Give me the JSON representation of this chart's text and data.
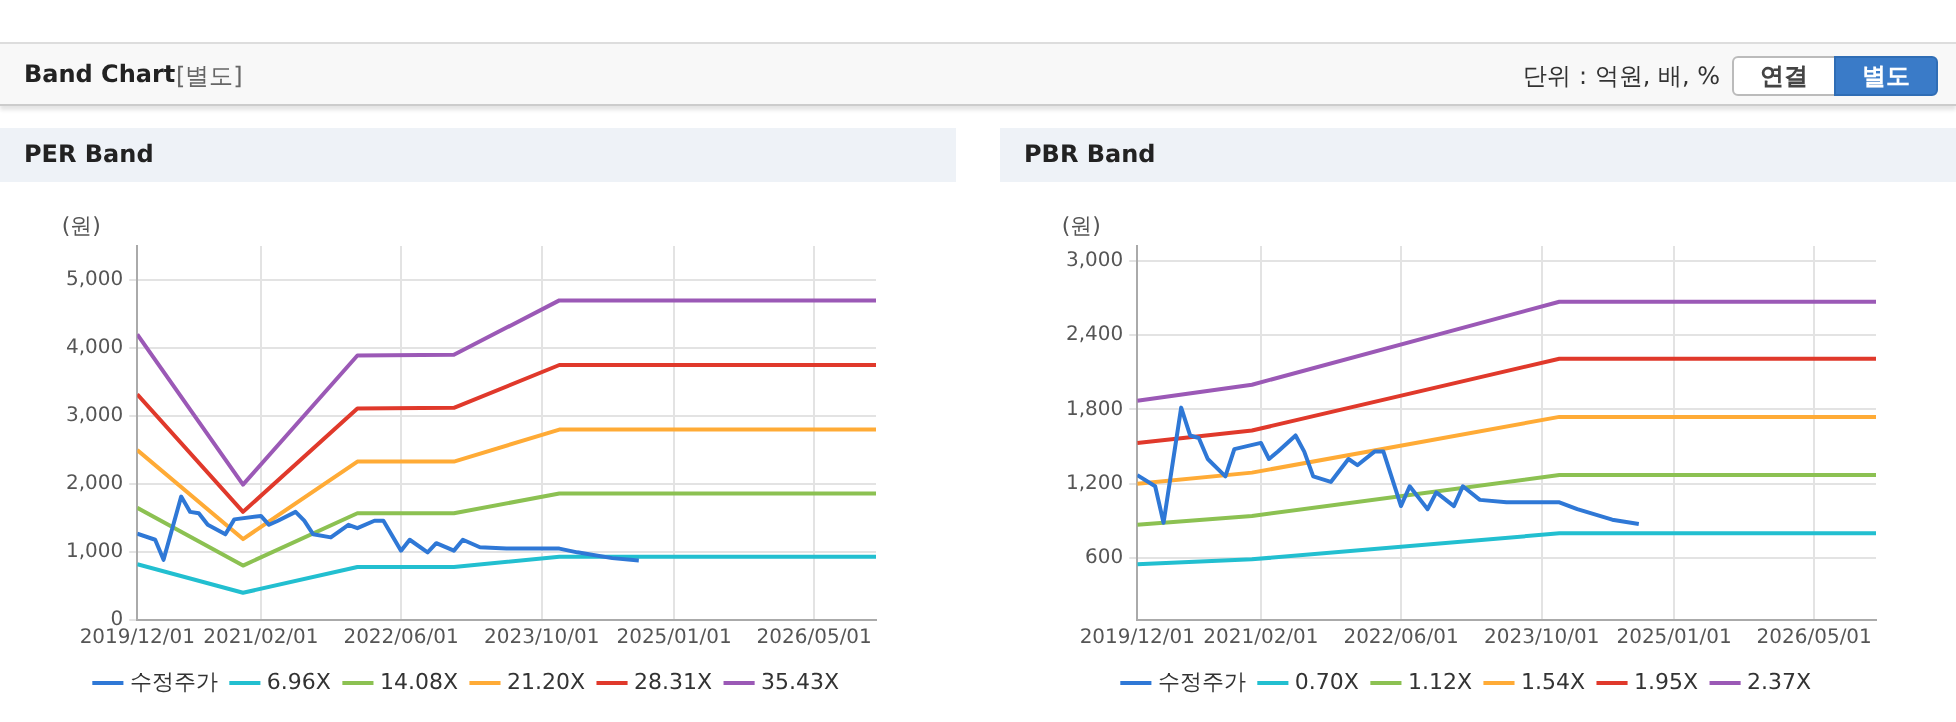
{
  "chart_data": [
    {
      "type": "other",
      "title": "Band Chart",
      "annotations": [
        "[별도]",
        "단위 : 억원, 배, %",
        "연결",
        "별도"
      ]
    },
    {
      "type": "line",
      "title": "PER Band",
      "ylabel": "(원)",
      "legend": "bottom",
      "grid": true,
      "xlim": [
        "2019-12-01",
        "2026-12-01"
      ],
      "xticks": [
        {
          "value": "2019-12-01",
          "label": "2019/12/01"
        },
        {
          "value": "2021-02-01",
          "label": "2021/02/01"
        },
        {
          "value": "2022-06-01",
          "label": "2022/06/01"
        },
        {
          "value": "2023-10-01",
          "label": "2023/10/01"
        },
        {
          "value": "2025-01-01",
          "label": "2025/01/01"
        },
        {
          "value": "2026-05-01",
          "label": "2026/05/01"
        }
      ],
      "ylim": [
        0,
        5500
      ],
      "yticks": [
        0,
        {
          "value": 1000,
          "label": "1,000"
        },
        {
          "value": 2000,
          "label": "2,000"
        },
        {
          "value": 3000,
          "label": "3,000"
        },
        {
          "value": 4000,
          "label": "4,000"
        },
        {
          "value": 5000,
          "label": "5,000"
        }
      ],
      "series": [
        {
          "name": "수정주가",
          "color": "#2f78d6",
          "x": [
            "2019-12",
            "2020-02",
            "2020-03",
            "2020-05",
            "2020-06",
            "2020-07",
            "2020-08",
            "2020-10",
            "2020-11",
            "2021-02",
            "2021-03",
            "2021-04",
            "2021-06",
            "2021-07",
            "2021-08",
            "2021-10",
            "2021-12",
            "2022-01",
            "2022-03",
            "2022-04",
            "2022-06",
            "2022-07",
            "2022-09",
            "2022-10",
            "2022-12",
            "2023-01",
            "2023-03",
            "2023-06",
            "2023-12",
            "2024-02",
            "2024-06",
            "2024-09"
          ],
          "values": [
            1270,
            1180,
            885,
            1815,
            1590,
            1570,
            1400,
            1260,
            1480,
            1530,
            1400,
            1460,
            1590,
            1460,
            1260,
            1215,
            1400,
            1350,
            1460,
            1460,
            1020,
            1180,
            995,
            1130,
            1020,
            1180,
            1070,
            1050,
            1050,
            995,
            910,
            875
          ]
        },
        {
          "name": "6.96X",
          "color": "#22bfd0",
          "x": [
            "2019-12",
            "2020-12",
            "2022-01",
            "2022-12",
            "2023-12",
            "2026-12"
          ],
          "values": [
            820,
            400,
            780,
            780,
            930,
            930
          ]
        },
        {
          "name": "14.08X",
          "color": "#8cc152",
          "x": [
            "2019-12",
            "2020-12",
            "2022-01",
            "2022-12",
            "2023-12",
            "2026-12"
          ],
          "values": [
            1650,
            800,
            1570,
            1570,
            1860,
            1860
          ]
        },
        {
          "name": "21.20X",
          "color": "#ffab36",
          "x": [
            "2019-12",
            "2020-12",
            "2022-01",
            "2022-12",
            "2023-12",
            "2026-12"
          ],
          "values": [
            2500,
            1190,
            2330,
            2330,
            2800,
            2800
          ]
        },
        {
          "name": "28.31X",
          "color": "#e0392b",
          "x": [
            "2019-12",
            "2020-12",
            "2022-01",
            "2022-12",
            "2023-12",
            "2026-12"
          ],
          "values": [
            3320,
            1590,
            3110,
            3120,
            3750,
            3750
          ]
        },
        {
          "name": "35.43X",
          "color": "#9b59b6",
          "x": [
            "2019-12",
            "2020-12",
            "2022-01",
            "2022-12",
            "2023-12",
            "2026-12"
          ],
          "values": [
            4200,
            1990,
            3890,
            3900,
            4700,
            4700
          ]
        }
      ]
    },
    {
      "type": "line",
      "title": "PBR Band",
      "ylabel": "(원)",
      "legend": "bottom",
      "grid": true,
      "xlim": [
        "2019-12-01",
        "2026-12-01"
      ],
      "xticks": [
        {
          "value": "2019-12-01",
          "label": "2019/12/01"
        },
        {
          "value": "2021-02-01",
          "label": "2021/02/01"
        },
        {
          "value": "2022-06-01",
          "label": "2022/06/01"
        },
        {
          "value": "2023-10-01",
          "label": "2023/10/01"
        },
        {
          "value": "2025-01-01",
          "label": "2025/01/01"
        },
        {
          "value": "2026-05-01",
          "label": "2026/05/01"
        }
      ],
      "ylim": [
        100,
        3120
      ],
      "yticks": [
        600,
        {
          "value": 1200,
          "label": "1,200"
        },
        {
          "value": 1800,
          "label": "1,800"
        },
        {
          "value": 2400,
          "label": "2,400"
        },
        {
          "value": 3000,
          "label": "3,000"
        }
      ],
      "series": [
        {
          "name": "수정주가",
          "color": "#2f78d6",
          "x": [
            "2019-12",
            "2020-02",
            "2020-03",
            "2020-05",
            "2020-06",
            "2020-07",
            "2020-08",
            "2020-10",
            "2020-11",
            "2021-02",
            "2021-03",
            "2021-04",
            "2021-06",
            "2021-07",
            "2021-08",
            "2021-10",
            "2021-12",
            "2022-01",
            "2022-03",
            "2022-04",
            "2022-06",
            "2022-07",
            "2022-09",
            "2022-10",
            "2022-12",
            "2023-01",
            "2023-03",
            "2023-06",
            "2023-12",
            "2024-02",
            "2024-06",
            "2024-09"
          ],
          "values": [
            1270,
            1180,
            885,
            1815,
            1590,
            1570,
            1400,
            1260,
            1480,
            1530,
            1400,
            1460,
            1590,
            1460,
            1260,
            1215,
            1400,
            1350,
            1460,
            1460,
            1020,
            1180,
            995,
            1130,
            1020,
            1180,
            1070,
            1050,
            1050,
            995,
            910,
            875
          ]
        },
        {
          "name": "0.70X",
          "color": "#22bfd0",
          "x": [
            "2019-12",
            "2021-01",
            "2023-12",
            "2026-12"
          ],
          "values": [
            550,
            590,
            800,
            800
          ]
        },
        {
          "name": "1.12X",
          "color": "#8cc152",
          "x": [
            "2019-12",
            "2021-01",
            "2023-12",
            "2026-12"
          ],
          "values": [
            870,
            940,
            1270,
            1270
          ]
        },
        {
          "name": "1.54X",
          "color": "#ffab36",
          "x": [
            "2019-12",
            "2021-01",
            "2023-12",
            "2026-12"
          ],
          "values": [
            1200,
            1290,
            1740,
            1740
          ]
        },
        {
          "name": "1.95X",
          "color": "#e0392b",
          "x": [
            "2019-12",
            "2021-01",
            "2023-12",
            "2026-12"
          ],
          "values": [
            1530,
            1630,
            2210,
            2210
          ]
        },
        {
          "name": "2.37X",
          "color": "#9b59b6",
          "x": [
            "2019-12",
            "2021-01",
            "2023-12",
            "2026-12"
          ],
          "values": [
            1870,
            2000,
            2670,
            2670
          ]
        }
      ]
    }
  ]
}
